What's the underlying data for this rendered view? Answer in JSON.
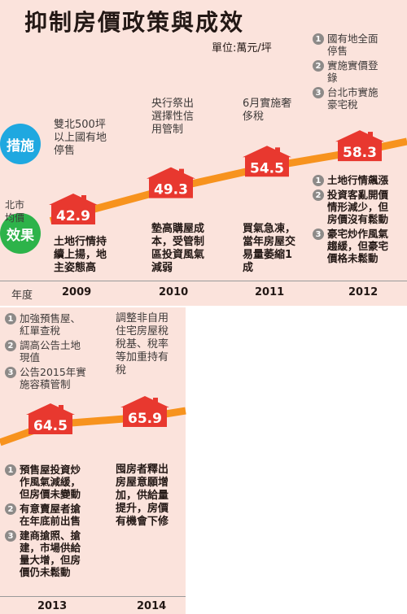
{
  "title": "抑制房價政策與成效",
  "unit": "單位:萬元/坪",
  "labels": {
    "measures": "措施",
    "effects": "效果",
    "series": "北市\n均價",
    "year_axis": "年度"
  },
  "colors": {
    "line": "#f7931e",
    "house": "#e8382f",
    "measures_circle": "#1fa8e0",
    "effects_circle": "#2db34a",
    "background": "#fbe3dc"
  },
  "chart_data": {
    "type": "line",
    "categories": [
      "2009",
      "2010",
      "2011",
      "2012",
      "2013",
      "2014"
    ],
    "series": [
      {
        "name": "北市均價",
        "values": [
          42.9,
          49.3,
          54.5,
          58.3,
          64.5,
          65.9
        ]
      }
    ],
    "value_labels": [
      "42.9",
      "49.3",
      "54.5",
      "58.3",
      "64.5",
      "65.9"
    ]
  },
  "measures": {
    "y2009": "雙北500坪\n以上國有地\n停售",
    "y2010": "央行祭出\n選擇性信\n用管制",
    "y2011": "6月實施奢\n侈稅",
    "y2012": [
      "國有地全面\n停售",
      "實施實價登\n錄",
      "台北市實施\n豪宅稅"
    ],
    "y2013": [
      "加強預售屋、\n紅單查稅",
      "調高公告土地\n現值",
      "公告2015年實\n施容積管制"
    ],
    "y2014": "調整非自用\n住宅房屋稅\n稅基、稅率\n等加重持有\n稅"
  },
  "effects": {
    "y2009": "土地行情持\n續上揚，地\n主姿態高",
    "y2010": "墊高購屋成\n本，受管制\n區投資風氣\n減弱",
    "y2011": "買氣急凍，\n當年房屋交\n易量萎縮1\n成",
    "y2012": [
      "土地行情飆漲",
      "投資客亂開價\n情形減少，但\n房價沒有鬆動",
      "豪宅炒作風氣\n趨緩，但豪宅\n價格未鬆動"
    ],
    "y2013": [
      "預售屋投資炒\n作風氣減緩，\n但房價未變動",
      "有意賣屋者搶\n在年底前出售",
      "建商搶照、搶\n建，市場供給\n量大增，但房\n價仍未鬆動"
    ],
    "y2014": "囤房者釋出\n房屋意願增\n加，供給量\n提升，房價\n有機會下修"
  },
  "numbers": [
    "1",
    "2",
    "3"
  ]
}
